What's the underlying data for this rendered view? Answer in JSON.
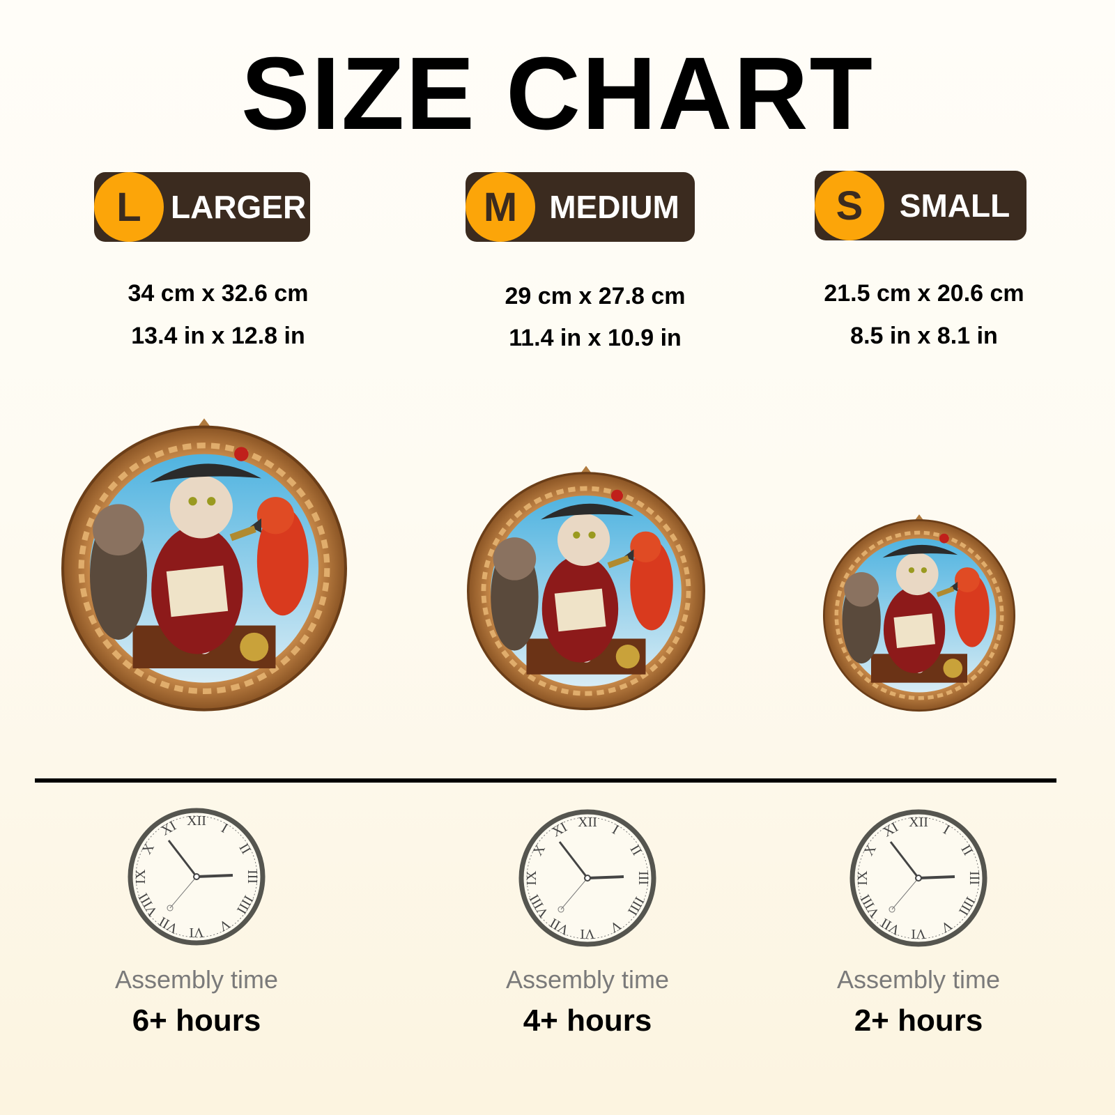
{
  "title": "SIZE CHART",
  "sizes": [
    {
      "letter": "L",
      "label": "LARGER",
      "metric": "34 cm x 32.6 cm",
      "imperial": "13.4 in x 12.8 in",
      "assembly_label": "Assembly time",
      "assembly_time": "6+ hours"
    },
    {
      "letter": "M",
      "label": "MEDIUM",
      "metric": "29 cm x 27.8 cm",
      "imperial": "11.4 in x 10.9 in",
      "assembly_label": "Assembly time",
      "assembly_time": "4+ hours"
    },
    {
      "letter": "S",
      "label": "SMALL",
      "metric": "21.5 cm x 20.6 cm",
      "imperial": "8.5 in x 8.1 in",
      "assembly_label": "Assembly time",
      "assembly_time": "2+ hours"
    }
  ],
  "colors": {
    "badge_bg": "#3b2b1f",
    "badge_circle": "#fca509",
    "clock_rim": "#55554f"
  },
  "illustration": "pirate-cats-parrot-round-wooden-puzzle",
  "clock_numerals": [
    "XII",
    "I",
    "II",
    "III",
    "IIII",
    "V",
    "VI",
    "VII",
    "VIII",
    "IX",
    "X",
    "XI"
  ]
}
